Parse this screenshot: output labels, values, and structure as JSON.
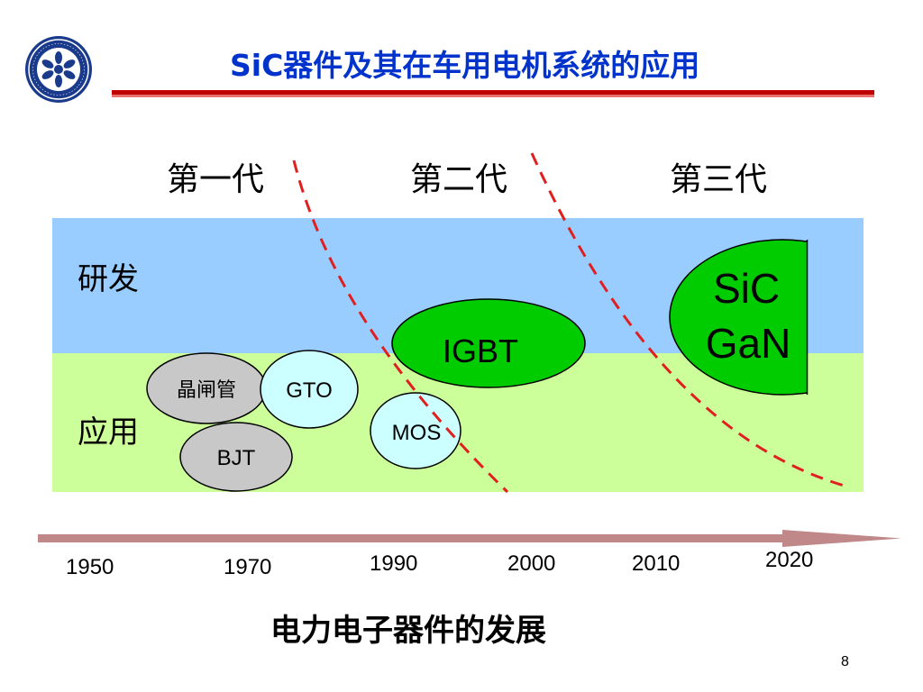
{
  "title": "SiC器件及其在车用电机系统的应用",
  "generations": [
    "第一代",
    "第二代",
    "第三代"
  ],
  "bands": {
    "rd": "研发",
    "app": "应用"
  },
  "devices": {
    "thyristor": "晶闸管",
    "gto": "GTO",
    "bjt": "BJT",
    "mos": "MOS",
    "igbt": "IGBT",
    "sic": "SiC",
    "gan": "GaN"
  },
  "timeline": {
    "years": [
      "1950",
      "1970",
      "1990",
      "2000",
      "2010",
      "2020"
    ]
  },
  "subtitle": "电力电子器件的发展",
  "page_number": "8",
  "colors": {
    "title": "#0033cc",
    "rule": "#c00000",
    "rd_band": "#99ccff",
    "app_band": "#ccff99",
    "gen_divider": "#e02020",
    "gray_device": "#c8c8c8",
    "light_cyan_device": "#ccffff",
    "green_device": "#00cc00",
    "arrow": "#c08888",
    "logo": "#1a3a8c"
  },
  "logo_icon": "academy-seal-icon"
}
